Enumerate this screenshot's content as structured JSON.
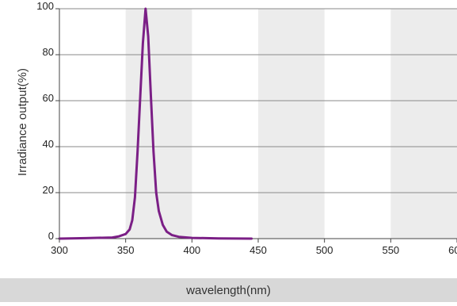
{
  "chart_data": {
    "type": "line",
    "title": "",
    "xlabel": "wavelength(nm)",
    "ylabel": "Irradiance output(%)",
    "xlim": [
      300,
      600
    ],
    "ylim": [
      0,
      100
    ],
    "x_ticks": [
      "300",
      "350",
      "400",
      "450",
      "500",
      "550",
      "600"
    ],
    "y_ticks": [
      "0",
      "20",
      "40",
      "60",
      "80",
      "100"
    ],
    "grid": "horizontal",
    "shaded_bands": [
      [
        350,
        375
      ],
      [
        375,
        400
      ],
      [
        450,
        500
      ],
      [
        550,
        600
      ]
    ],
    "colors": {
      "line": "#7b1f86",
      "band": "#ececec",
      "grid": "#8a8a8a"
    },
    "series": [
      {
        "x": [
          300,
          320,
          340,
          345,
          350,
          353,
          355,
          357,
          359,
          361,
          363,
          365,
          367,
          369,
          371,
          373,
          375,
          378,
          381,
          385,
          390,
          400,
          420,
          445
        ],
        "y": [
          0,
          0.2,
          0.5,
          1,
          2,
          4,
          8,
          18,
          38,
          62,
          85,
          100,
          88,
          62,
          38,
          20,
          12,
          6,
          3,
          1.5,
          0.8,
          0.3,
          0.1,
          0
        ]
      }
    ]
  }
}
